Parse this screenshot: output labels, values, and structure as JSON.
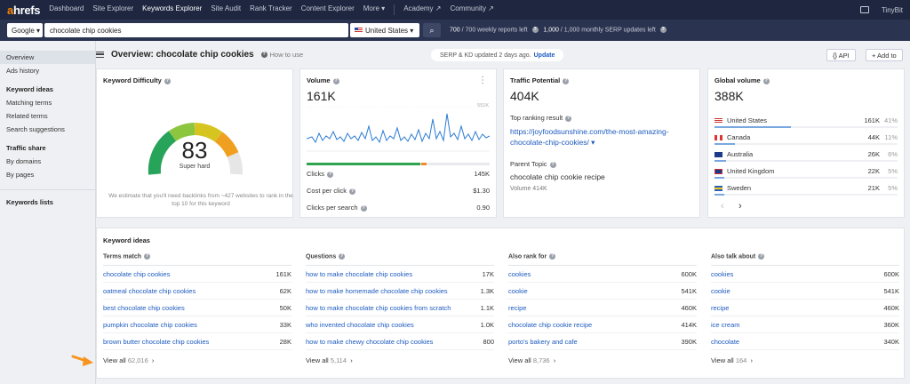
{
  "nav": {
    "logo_a": "a",
    "logo_rest": "hrefs",
    "items": [
      "Dashboard",
      "Site Explorer",
      "Keywords Explorer",
      "Site Audit",
      "Rank Tracker",
      "Content Explorer",
      "More ▾"
    ],
    "items2": [
      "Academy ↗",
      "Community ↗"
    ],
    "user": "TinyBit"
  },
  "search": {
    "engine": "Google ▾",
    "query": "chocolate chip cookies",
    "country": "United States ▾",
    "search_icon": "⌕",
    "quota1_used": "700",
    "quota1_total": "/ 700",
    "quota1_label": "weekly reports left",
    "quota2_used": "1,000",
    "quota2_total": "/ 1,000",
    "quota2_label": "monthly SERP updates left"
  },
  "sidebar": {
    "overview": "Overview",
    "ads_history": "Ads history",
    "keyword_ideas": "Keyword ideas",
    "matching_terms": "Matching terms",
    "related_terms": "Related terms",
    "search_suggestions": "Search suggestions",
    "traffic_share": "Traffic share",
    "by_domains": "By domains",
    "by_pages": "By pages",
    "keywords_lists": "Keywords lists"
  },
  "header": {
    "title": "Overview: chocolate chip cookies",
    "how_to_use": "How to use",
    "serp_updated": "SERP & KD updated 2 days ago.",
    "update": "Update",
    "api": "{} API",
    "add_to": "+ Add to"
  },
  "kd": {
    "title": "Keyword Difficulty",
    "value": "83",
    "label": "Super hard",
    "note": "We estimate that you'll need backlinks from ~427 websites to rank in the top 10 for this keyword",
    "level": 0.83
  },
  "volume": {
    "title": "Volume",
    "value": "161K",
    "max_label": "551K",
    "clicks_label": "Clicks",
    "clicks_value": "145K",
    "cpc_label": "Cost per click",
    "cpc_value": "$1.30",
    "cps_label": "Clicks per search",
    "cps_value": "0.90",
    "more": "⋮"
  },
  "traffic": {
    "title": "Traffic Potential",
    "value": "404K",
    "top_result_label": "Top ranking result",
    "top_url": "https://joyfoodsunshine.com/the-most-amazing-chocolate-chip-cookies/ ▾",
    "parent_topic_label": "Parent Topic",
    "parent_topic": "chocolate chip cookie recipe",
    "parent_volume": "Volume 414K"
  },
  "global": {
    "title": "Global volume",
    "value": "388K",
    "rows": [
      {
        "country": "United States",
        "value": "161K",
        "pct": "41%",
        "share": 0.41
      },
      {
        "country": "Canada",
        "value": "44K",
        "pct": "11%",
        "share": 0.11
      },
      {
        "country": "Australia",
        "value": "26K",
        "pct": "6%",
        "share": 0.06
      },
      {
        "country": "United Kingdom",
        "value": "22K",
        "pct": "5%",
        "share": 0.05
      },
      {
        "country": "Sweden",
        "value": "21K",
        "pct": "5%",
        "share": 0.05
      }
    ],
    "prev": "‹",
    "next": "›"
  },
  "ideas": {
    "title": "Keyword ideas",
    "columns": [
      {
        "head": "Terms match",
        "rows": [
          [
            "chocolate chip cookies",
            "161K"
          ],
          [
            "oatmeal chocolate chip cookies",
            "62K"
          ],
          [
            "best chocolate chip cookies",
            "50K"
          ],
          [
            "pumpkin chocolate chip cookies",
            "33K"
          ],
          [
            "brown butter chocolate chip cookies",
            "28K"
          ]
        ],
        "view_all": "View all",
        "count": "62,016"
      },
      {
        "head": "Questions",
        "rows": [
          [
            "how to make chocolate chip cookies",
            "17K"
          ],
          [
            "how to make homemade chocolate chip cookies",
            "1.3K"
          ],
          [
            "how to make chocolate chip cookies from scratch",
            "1.1K"
          ],
          [
            "who invented chocolate chip cookies",
            "1.0K"
          ],
          [
            "how to make chewy chocolate chip cookies",
            "800"
          ]
        ],
        "view_all": "View all",
        "count": "5,114"
      },
      {
        "head": "Also rank for",
        "rows": [
          [
            "cookies",
            "600K"
          ],
          [
            "cookie",
            "541K"
          ],
          [
            "recipe",
            "460K"
          ],
          [
            "chocolate chip cookie recipe",
            "414K"
          ],
          [
            "porto's bakery and cafe",
            "390K"
          ]
        ],
        "view_all": "View all",
        "count": "8,736"
      },
      {
        "head": "Also talk about",
        "rows": [
          [
            "cookies",
            "600K"
          ],
          [
            "cookie",
            "541K"
          ],
          [
            "recipe",
            "460K"
          ],
          [
            "ice cream",
            "360K"
          ],
          [
            "chocolate",
            "340K"
          ]
        ],
        "view_all": "View all",
        "count": "164"
      }
    ]
  },
  "colors": {
    "nav": "#1e2640",
    "link": "#1d5bbf",
    "accent": "#ff8800",
    "chart_line": "#2b7bd3"
  }
}
